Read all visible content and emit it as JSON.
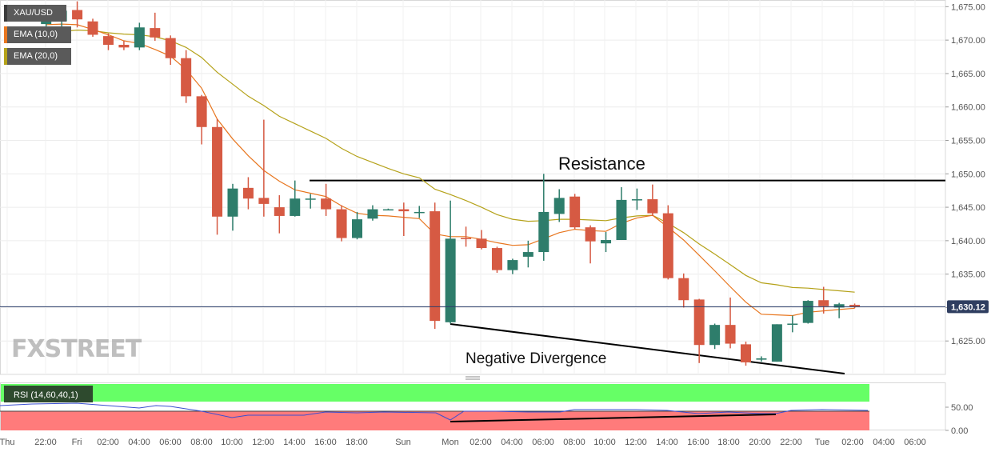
{
  "chart_data": {
    "type": "candlestick",
    "symbol": "XAU/USD",
    "indicators": [
      {
        "name": "EMA (10,0)",
        "color": "#e8761f"
      },
      {
        "name": "EMA (20,0)",
        "color": "#b5a21a"
      }
    ],
    "last_price": "1,630.12",
    "y_axis": {
      "min": 1620.0,
      "max": 1676.0,
      "ticks": [
        "1,625.00",
        "1,630.00",
        "1,635.00",
        "1,640.00",
        "1,645.00",
        "1,650.00",
        "1,655.00",
        "1,660.00",
        "1,665.00",
        "1,670.00",
        "1,675.00"
      ]
    },
    "x_axis": {
      "labels": [
        "Thu",
        "22:00",
        "Fri",
        "02:00",
        "04:00",
        "06:00",
        "08:00",
        "10:00",
        "12:00",
        "14:00",
        "16:00",
        "18:00",
        "Sun",
        "Mon",
        "02:00",
        "04:00",
        "06:00",
        "08:00",
        "10:00",
        "12:00",
        "14:00",
        "16:00",
        "18:00",
        "20:00",
        "22:00",
        "Tue",
        "02:00",
        "04:00",
        "06:00"
      ]
    },
    "candles": [
      {
        "o": 1672.4,
        "h": 1673.3,
        "l": 1671.4,
        "c": 1673.1
      },
      {
        "o": 1672.8,
        "h": 1674.7,
        "l": 1672.0,
        "c": 1674.4
      },
      {
        "o": 1674.5,
        "h": 1675.8,
        "l": 1671.9,
        "c": 1673.1
      },
      {
        "o": 1672.8,
        "h": 1673.2,
        "l": 1670.5,
        "c": 1670.8
      },
      {
        "o": 1670.6,
        "h": 1671.0,
        "l": 1668.5,
        "c": 1669.3
      },
      {
        "o": 1669.3,
        "h": 1669.9,
        "l": 1668.5,
        "c": 1668.9
      },
      {
        "o": 1668.9,
        "h": 1672.6,
        "l": 1668.5,
        "c": 1671.9
      },
      {
        "o": 1671.8,
        "h": 1674.1,
        "l": 1669.9,
        "c": 1670.4
      },
      {
        "o": 1670.3,
        "h": 1670.7,
        "l": 1666.3,
        "c": 1667.3
      },
      {
        "o": 1667.3,
        "h": 1668.5,
        "l": 1660.6,
        "c": 1661.6
      },
      {
        "o": 1661.6,
        "h": 1661.8,
        "l": 1654.4,
        "c": 1657.0
      },
      {
        "o": 1657.0,
        "h": 1658.2,
        "l": 1640.9,
        "c": 1643.6
      },
      {
        "o": 1643.6,
        "h": 1648.5,
        "l": 1641.5,
        "c": 1647.8
      },
      {
        "o": 1647.9,
        "h": 1649.5,
        "l": 1644.7,
        "c": 1646.3
      },
      {
        "o": 1646.4,
        "h": 1658.1,
        "l": 1643.6,
        "c": 1645.5
      },
      {
        "o": 1645.0,
        "h": 1646.8,
        "l": 1641.1,
        "c": 1643.7
      },
      {
        "o": 1643.7,
        "h": 1649.0,
        "l": 1643.6,
        "c": 1646.3
      },
      {
        "o": 1646.3,
        "h": 1647.0,
        "l": 1644.8,
        "c": 1646.3
      },
      {
        "o": 1646.3,
        "h": 1648.5,
        "l": 1643.7,
        "c": 1644.7
      },
      {
        "o": 1644.7,
        "h": 1645.3,
        "l": 1639.9,
        "c": 1640.4
      },
      {
        "o": 1640.4,
        "h": 1644.3,
        "l": 1640.2,
        "c": 1643.2
      },
      {
        "o": 1643.3,
        "h": 1645.3,
        "l": 1643.0,
        "c": 1644.7
      },
      {
        "o": 1644.7,
        "h": 1644.8,
        "l": 1644.6,
        "c": 1644.7
      },
      {
        "o": 1644.7,
        "h": 1645.7,
        "l": 1640.7,
        "c": 1644.4
      },
      {
        "o": 1644.2,
        "h": 1645.2,
        "l": 1643.4,
        "c": 1644.3
      },
      {
        "o": 1644.4,
        "h": 1645.7,
        "l": 1626.8,
        "c": 1628.0
      },
      {
        "o": 1627.8,
        "h": 1646.0,
        "l": 1627.6,
        "c": 1640.3
      },
      {
        "o": 1640.4,
        "h": 1642.1,
        "l": 1639.1,
        "c": 1640.3
      },
      {
        "o": 1640.3,
        "h": 1641.6,
        "l": 1638.7,
        "c": 1638.9
      },
      {
        "o": 1638.9,
        "h": 1639.1,
        "l": 1635.2,
        "c": 1635.6
      },
      {
        "o": 1635.6,
        "h": 1637.3,
        "l": 1635.0,
        "c": 1637.1
      },
      {
        "o": 1637.6,
        "h": 1640.0,
        "l": 1636.0,
        "c": 1638.3
      },
      {
        "o": 1638.3,
        "h": 1650.0,
        "l": 1637.0,
        "c": 1644.3
      },
      {
        "o": 1644.0,
        "h": 1647.7,
        "l": 1642.8,
        "c": 1646.4
      },
      {
        "o": 1646.6,
        "h": 1647.0,
        "l": 1641.7,
        "c": 1642.0
      },
      {
        "o": 1642.0,
        "h": 1642.3,
        "l": 1636.6,
        "c": 1639.9
      },
      {
        "o": 1639.6,
        "h": 1641.3,
        "l": 1638.3,
        "c": 1640.1
      },
      {
        "o": 1640.1,
        "h": 1648.0,
        "l": 1640.1,
        "c": 1646.1
      },
      {
        "o": 1646.1,
        "h": 1647.8,
        "l": 1644.6,
        "c": 1646.2
      },
      {
        "o": 1646.2,
        "h": 1648.4,
        "l": 1643.7,
        "c": 1644.1
      },
      {
        "o": 1644.1,
        "h": 1645.3,
        "l": 1634.2,
        "c": 1634.4
      },
      {
        "o": 1634.4,
        "h": 1635.1,
        "l": 1630.0,
        "c": 1631.1
      },
      {
        "o": 1631.2,
        "h": 1631.3,
        "l": 1621.7,
        "c": 1624.4
      },
      {
        "o": 1624.4,
        "h": 1627.6,
        "l": 1623.8,
        "c": 1627.4
      },
      {
        "o": 1627.4,
        "h": 1631.5,
        "l": 1623.9,
        "c": 1624.6
      },
      {
        "o": 1624.5,
        "h": 1624.9,
        "l": 1621.3,
        "c": 1621.8
      },
      {
        "o": 1622.2,
        "h": 1622.7,
        "l": 1621.9,
        "c": 1622.4
      },
      {
        "o": 1621.9,
        "h": 1627.5,
        "l": 1621.9,
        "c": 1627.5
      },
      {
        "o": 1627.5,
        "h": 1628.8,
        "l": 1626.3,
        "c": 1627.6
      },
      {
        "o": 1627.7,
        "h": 1631.1,
        "l": 1627.6,
        "c": 1631.0
      },
      {
        "o": 1631.1,
        "h": 1633.1,
        "l": 1629.1,
        "c": 1630.2
      },
      {
        "o": 1630.0,
        "h": 1630.7,
        "l": 1628.4,
        "c": 1630.5
      },
      {
        "o": 1630.4,
        "h": 1630.6,
        "l": 1629.9,
        "c": 1630.1
      }
    ],
    "ema10": [
      1672.3,
      1672.4,
      1672.3,
      1671.6,
      1670.8,
      1669.9,
      1669.5,
      1668.6,
      1667.6,
      1665.6,
      1662.8,
      1658.2,
      1655.2,
      1652.7,
      1650.5,
      1648.9,
      1647.6,
      1647.1,
      1646.6,
      1645.2,
      1644.1,
      1643.8,
      1643.7,
      1643.5,
      1643.3,
      1641.0,
      1640.6,
      1640.6,
      1640.2,
      1639.7,
      1639.3,
      1639.4,
      1640.3,
      1641.2,
      1641.7,
      1641.5,
      1641.4,
      1642.6,
      1643.4,
      1643.8,
      1642.0,
      1640.1,
      1637.8,
      1635.5,
      1633.1,
      1630.8,
      1629.0,
      1628.9,
      1628.8,
      1629.3,
      1629.5,
      1629.7,
      1629.9
    ],
    "ema20": [
      1671.0,
      1671.3,
      1671.5,
      1671.4,
      1671.1,
      1670.9,
      1670.8,
      1670.5,
      1669.9,
      1668.9,
      1667.4,
      1665.2,
      1663.4,
      1661.6,
      1660.2,
      1658.6,
      1657.5,
      1656.4,
      1655.3,
      1653.8,
      1652.6,
      1651.7,
      1650.8,
      1650.0,
      1649.4,
      1647.7,
      1646.9,
      1646.0,
      1645.0,
      1643.9,
      1643.2,
      1642.9,
      1643.0,
      1643.2,
      1643.2,
      1643.1,
      1643.0,
      1643.4,
      1643.7,
      1643.8,
      1642.6,
      1641.2,
      1639.5,
      1638.0,
      1636.4,
      1634.8,
      1633.7,
      1633.4,
      1633.0,
      1632.9,
      1632.7,
      1632.5,
      1632.3
    ]
  },
  "annotations": {
    "resistance": "Resistance",
    "negative_divergence": "Negative Divergence"
  },
  "rsi": {
    "label": "RSI (14,60,40,1)",
    "ticks": [
      "50.00",
      "0.00"
    ],
    "upper_band_color": "#66ff66",
    "lower_band_color": "#ff7b7b"
  },
  "watermark": "FXSTREET",
  "colors": {
    "up": "#2e7d6b",
    "down": "#d65a43",
    "resistance_line": "#000000"
  }
}
